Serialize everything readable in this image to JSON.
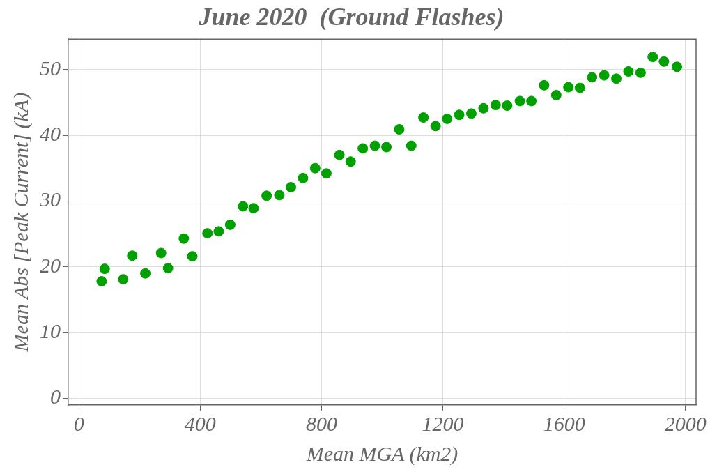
{
  "chart_data": {
    "type": "scatter",
    "title": "June 2020  (Ground Flashes)",
    "xlabel": "Mean MGA (km2)",
    "ylabel": "Mean Abs [Peak Current] (kA)",
    "x": [
      75,
      85,
      146,
      176,
      219,
      271,
      294,
      346,
      374,
      424,
      461,
      499,
      541,
      576,
      619,
      661,
      699,
      739,
      779,
      816,
      859,
      896,
      936,
      976,
      1014,
      1056,
      1096,
      1136,
      1176,
      1214,
      1254,
      1294,
      1334,
      1374,
      1412,
      1454,
      1492,
      1534,
      1574,
      1614,
      1652,
      1692,
      1732,
      1772,
      1812,
      1852,
      1892,
      1929,
      1972
    ],
    "series": [
      {
        "color": "#00a000",
        "values": [
          17.8,
          19.7,
          18.1,
          21.7,
          19.0,
          22.1,
          19.8,
          24.3,
          21.6,
          25.1,
          25.4,
          26.4,
          29.2,
          28.9,
          30.8,
          30.9,
          32.1,
          33.5,
          35.0,
          34.2,
          37.0,
          36.0,
          38.0,
          38.4,
          38.2,
          40.9,
          38.4,
          42.7,
          41.4,
          42.5,
          43.1,
          43.3,
          44.1,
          44.6,
          44.5,
          45.2,
          45.2,
          47.6,
          46.1,
          47.3,
          47.2,
          48.8,
          49.1,
          48.6,
          49.7,
          49.5,
          51.9,
          51.2,
          50.4
        ]
      }
    ],
    "xlim": [
      -35,
      2035
    ],
    "ylim": [
      -1,
      54.6
    ],
    "xticks": [
      0,
      400,
      800,
      1200,
      1600,
      2000
    ],
    "yticks": [
      0,
      10,
      20,
      30,
      40,
      50
    ],
    "grid": true,
    "marker": "circle",
    "legend": false
  }
}
